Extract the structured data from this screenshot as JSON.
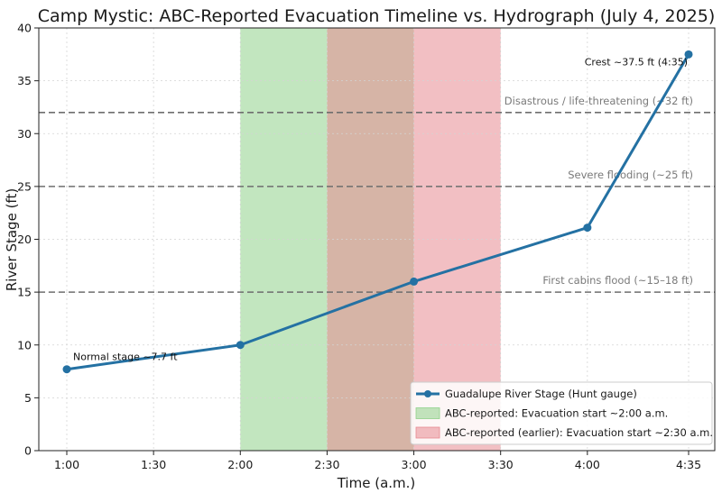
{
  "chart_data": {
    "type": "line",
    "title": "Camp Mystic: ABC-Reported Evacuation Timeline vs. Hydrograph (July 4, 2025)",
    "xlabel": "Time (a.m.)",
    "ylabel": "River Stage (ft)",
    "ylim": [
      0,
      40
    ],
    "yticks": [
      0,
      5,
      10,
      15,
      20,
      25,
      30,
      35,
      40
    ],
    "x_ticks": [
      {
        "t": "1:00",
        "label": "1:00"
      },
      {
        "t": "1:30",
        "label": "1:30"
      },
      {
        "t": "2:00",
        "label": "2:00"
      },
      {
        "t": "2:30",
        "label": "2:30"
      },
      {
        "t": "3:00",
        "label": "3:00"
      },
      {
        "t": "3:30",
        "label": "3:30"
      },
      {
        "t": "4:00",
        "label": "4:00"
      },
      {
        "t": "4:35",
        "label": "4:35"
      }
    ],
    "grid": true,
    "series": [
      {
        "name": "Guadalupe River Stage (Hunt gauge)",
        "color": "#2471a3",
        "points": [
          {
            "t": "1:00",
            "y": 7.7
          },
          {
            "t": "2:00",
            "y": 10
          },
          {
            "t": "3:00",
            "y": 16
          },
          {
            "t": "4:00",
            "y": 21.1
          },
          {
            "t": "4:35",
            "y": 37.5
          }
        ]
      }
    ],
    "spans": [
      {
        "name": "ABC-reported: Evacuation start ~2:00 a.m.",
        "start": "2:00",
        "end": "3:00",
        "color": "#8fd18a",
        "opacity": 0.55
      },
      {
        "name": "ABC-reported (earlier): Evacuation start ~2:30 a.m.",
        "start": "2:30",
        "end": "3:30",
        "color": "#e88a92",
        "opacity": 0.55
      }
    ],
    "reference_lines": [
      {
        "y": 32,
        "label": "Disastrous / life-threatening (~32 ft)"
      },
      {
        "y": 25,
        "label": "Severe flooding (~25 ft)"
      },
      {
        "y": 15,
        "label": "First cabins flood (~15–18 ft)"
      }
    ],
    "annotations": [
      {
        "text": "Normal stage ~7.7 ft",
        "t": "1:00",
        "y": 7.7
      },
      {
        "text": "Crest ~37.5 ft (4:35)",
        "t": "4:35",
        "y": 37.5
      }
    ],
    "legend_position": "lower-right"
  }
}
